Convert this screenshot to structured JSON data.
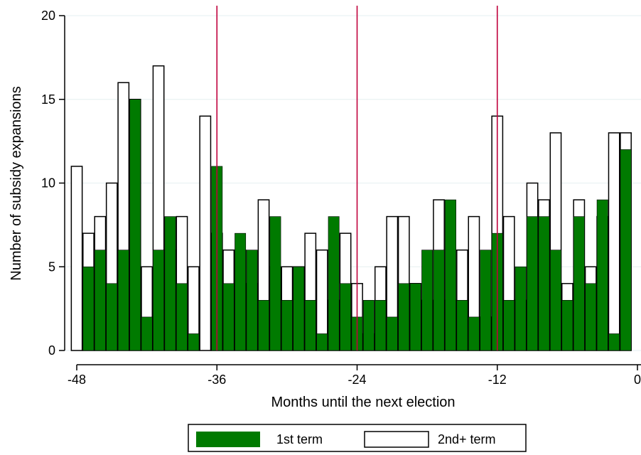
{
  "chart_data": {
    "type": "bar",
    "xlabel": "Months until the next election",
    "ylabel": "Number of subsidy expansions",
    "xlim": [
      -48,
      0
    ],
    "ylim": [
      0,
      20
    ],
    "xticks": [
      -48,
      -36,
      -24,
      -12,
      0
    ],
    "yticks": [
      0,
      5,
      10,
      15,
      20
    ],
    "reference_lines_x": [
      -36,
      -24,
      -12
    ],
    "grid": "horizontal",
    "legend_position": "bottom",
    "colors": {
      "first_term": "#007a00",
      "second_term": "#ffffff",
      "reference_line": "#c0003c"
    },
    "x": [
      -48,
      -47,
      -46,
      -45,
      -44,
      -43,
      -42,
      -41,
      -40,
      -39,
      -38,
      -37,
      -36,
      -35,
      -34,
      -33,
      -32,
      -31,
      -30,
      -29,
      -28,
      -27,
      -26,
      -25,
      -24,
      -23,
      -22,
      -21,
      -20,
      -19,
      -18,
      -17,
      -16,
      -15,
      -14,
      -13,
      -12,
      -11,
      -10,
      -9,
      -8,
      -7,
      -6,
      -5,
      -4,
      -3,
      -2,
      -1,
      0
    ],
    "series": [
      {
        "name": "1st term",
        "values": [
          0,
          5,
          6,
          4,
          6,
          15,
          2,
          6,
          8,
          4,
          1,
          0,
          11,
          4,
          7,
          6,
          3,
          8,
          3,
          5,
          3,
          1,
          8,
          4,
          2,
          3,
          3,
          2,
          4,
          4,
          6,
          6,
          9,
          3,
          2,
          6,
          7,
          3,
          5,
          8,
          8,
          6,
          3,
          8,
          4,
          9,
          1,
          12,
          0
        ]
      },
      {
        "name": "2nd+ term",
        "values": [
          11,
          7,
          8,
          10,
          16,
          15,
          5,
          17,
          6,
          8,
          5,
          14,
          7,
          6,
          6,
          4,
          9,
          5,
          5,
          5,
          7,
          6,
          3,
          7,
          4,
          1,
          5,
          8,
          8,
          4,
          3,
          9,
          3,
          6,
          8,
          2,
          14,
          8,
          3,
          10,
          9,
          13,
          4,
          9,
          5,
          8,
          13,
          13,
          0
        ]
      }
    ]
  }
}
